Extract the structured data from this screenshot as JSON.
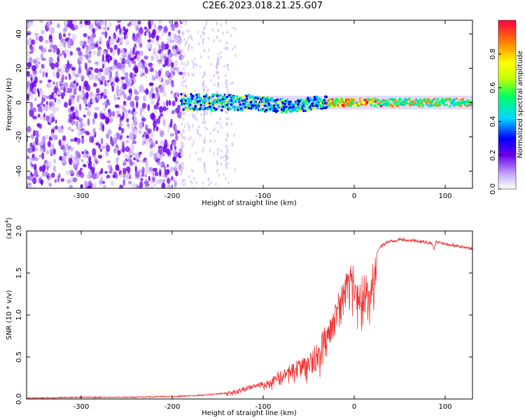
{
  "title": "C2E6.2023.018.21.25.G07",
  "chart_data": [
    {
      "type": "heatmap",
      "xlabel": "Height of straight line (km)",
      "ylabel": "Frequency (Hz)",
      "xlim": [
        -360,
        130
      ],
      "ylim": [
        -50,
        48
      ],
      "xticks": [
        -300,
        -200,
        -100,
        0,
        100
      ],
      "yticks": [
        -40,
        -20,
        0,
        20,
        40
      ],
      "colorbar": {
        "label": "Normalized spectral amplitude",
        "range": [
          0.0,
          1.0
        ],
        "ticks": [
          0.0,
          0.2,
          0.4,
          0.6,
          0.8
        ]
      },
      "features": {
        "noise_region_km": [
          -360,
          -190
        ],
        "signal_line_km": [
          -190,
          130
        ],
        "line_frequency_hz": 0
      }
    },
    {
      "type": "line",
      "xlabel": "Height of straight line (km)",
      "ylabel": "SNR (10 * v/v)",
      "y_scale_label": "(x10",
      "y_scale_exp": "4",
      "y_scale_close": ")",
      "xlim": [
        -360,
        130
      ],
      "ylim": [
        0.0,
        2.0
      ],
      "xticks": [
        -300,
        -200,
        -100,
        0,
        100
      ],
      "yticks": [
        0.0,
        0.5,
        1.0,
        1.5,
        2.0
      ],
      "ytick_labels": [
        "0.0",
        "0.5",
        "1.0",
        "1.5",
        "2.0"
      ],
      "color": "#ee3333",
      "series": [
        {
          "name": "SNR",
          "x": [
            -360,
            -300,
            -250,
            -200,
            -175,
            -150,
            -130,
            -120,
            -110,
            -100,
            -90,
            -80,
            -70,
            -60,
            -50,
            -40,
            -35,
            -30,
            -25,
            -20,
            -15,
            -10,
            -5,
            0,
            5,
            10,
            15,
            20,
            25,
            30,
            35,
            40,
            50,
            60,
            70,
            80,
            85,
            88,
            90,
            95,
            100,
            110,
            120,
            130
          ],
          "values": [
            0.01,
            0.02,
            0.02,
            0.03,
            0.04,
            0.06,
            0.08,
            0.12,
            0.15,
            0.18,
            0.25,
            0.35,
            0.42,
            0.5,
            0.55,
            0.65,
            0.75,
            0.9,
            1.05,
            1.2,
            1.35,
            1.55,
            1.6,
            1.55,
            1.45,
            1.4,
            1.45,
            1.6,
            1.75,
            1.82,
            1.86,
            1.88,
            1.9,
            1.89,
            1.88,
            1.87,
            1.85,
            1.78,
            1.87,
            1.86,
            1.85,
            1.83,
            1.81,
            1.79
          ]
        }
      ]
    }
  ]
}
